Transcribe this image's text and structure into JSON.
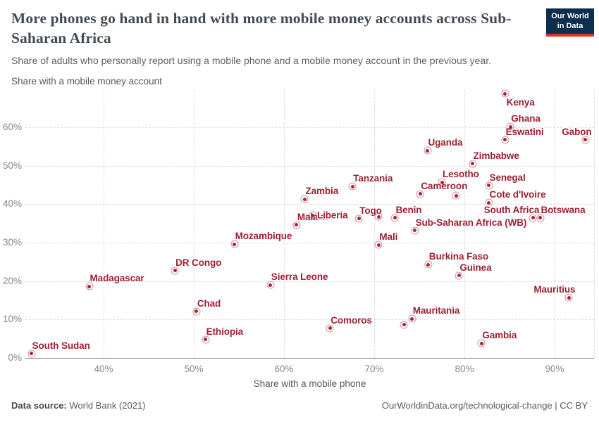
{
  "header": {
    "title": "More phones go hand in hand with more mobile money accounts across Sub-Saharan Africa",
    "subtitle": "Share of adults who personally report using a mobile phone and a mobile money account in the previous year.",
    "logo": {
      "line1": "Our World",
      "line2": "in Data",
      "bg_color": "#0d2e4c",
      "accent_color": "#dd352c"
    }
  },
  "chart_data": {
    "type": "scatter",
    "xlabel": "Share with a mobile phone",
    "ylabel": "Share with a mobile money account",
    "x_ticks": [
      40,
      50,
      60,
      70,
      80,
      90
    ],
    "y_ticks": [
      0,
      10,
      20,
      30,
      40,
      50,
      60
    ],
    "tick_suffix": "%",
    "xlim": [
      31.3,
      94.4
    ],
    "ylim": [
      0,
      69.7
    ],
    "grid": true,
    "legend": "none",
    "point_color": "#a22837",
    "label_color": "#9d2133",
    "points": [
      {
        "name": "South Sudan",
        "phone": 32.0,
        "money": 1.1,
        "label": "above-right"
      },
      {
        "name": "Madagascar",
        "phone": 38.4,
        "money": 18.6,
        "label": "above-right"
      },
      {
        "name": "DR Congo",
        "phone": 47.9,
        "money": 22.7,
        "label": "above-right"
      },
      {
        "name": "Chad",
        "phone": 50.3,
        "money": 12.1,
        "label": "above-right"
      },
      {
        "name": "Ethiopia",
        "phone": 51.3,
        "money": 4.8,
        "label": "above-right"
      },
      {
        "name": "Mozambique",
        "phone": 54.5,
        "money": 29.6,
        "label": "above-right"
      },
      {
        "name": "Sierra Leone",
        "phone": 58.5,
        "money": 19.0,
        "label": "above-right"
      },
      {
        "name": "Malawi",
        "phone": 61.4,
        "money": 34.6,
        "label": "above-right"
      },
      {
        "name": "Zambia",
        "phone": 62.3,
        "money": 41.3,
        "label": "above-right"
      },
      {
        "name": "Liberia",
        "phone": 63.2,
        "money": 37.1,
        "label": "right"
      },
      {
        "name": "Comoros",
        "phone": 65.1,
        "money": 7.7,
        "label": "above-right"
      },
      {
        "name": "Tanzania",
        "phone": 67.6,
        "money": 44.6,
        "label": "above-right"
      },
      {
        "name": "Togo",
        "phone": 68.3,
        "money": 36.2,
        "label": "above-right"
      },
      {
        "name": "",
        "phone": 70.5,
        "money": 36.7,
        "label": "none"
      },
      {
        "name": "Mali",
        "phone": 70.5,
        "money": 29.4,
        "label": "above-right"
      },
      {
        "name": "Benin",
        "phone": 72.3,
        "money": 36.4,
        "label": "above-right"
      },
      {
        "name": "",
        "phone": 73.3,
        "money": 8.6,
        "label": "none"
      },
      {
        "name": "Mauritania",
        "phone": 74.2,
        "money": 10.2,
        "label": "above-right"
      },
      {
        "name": "Sub-Saharan Africa (WB)",
        "phone": 74.5,
        "money": 33.1,
        "label": "above-right"
      },
      {
        "name": "Cameroon",
        "phone": 75.1,
        "money": 42.6,
        "label": "above-right"
      },
      {
        "name": "Uganda",
        "phone": 75.9,
        "money": 53.9,
        "label": "above-right"
      },
      {
        "name": "Burkina Faso",
        "phone": 76.0,
        "money": 24.3,
        "label": "above-right"
      },
      {
        "name": "Lesotho",
        "phone": 77.5,
        "money": 45.7,
        "label": "above-right"
      },
      {
        "name": "",
        "phone": 79.1,
        "money": 42.2,
        "label": "none"
      },
      {
        "name": "Guinea",
        "phone": 79.4,
        "money": 21.4,
        "label": "above-right"
      },
      {
        "name": "Zimbabwe",
        "phone": 80.9,
        "money": 50.5,
        "label": "above-right"
      },
      {
        "name": "Gambia",
        "phone": 81.9,
        "money": 3.8,
        "label": "above-right"
      },
      {
        "name": "Senegal",
        "phone": 82.7,
        "money": 44.8,
        "label": "above-right"
      },
      {
        "name": "Cote d'Ivoire",
        "phone": 82.7,
        "money": 40.4,
        "label": "above-right"
      },
      {
        "name": "Kenya",
        "phone": 84.5,
        "money": 68.7,
        "label": "below-right"
      },
      {
        "name": "Eswatini",
        "phone": 84.5,
        "money": 56.7,
        "label": "above-right"
      },
      {
        "name": "Ghana",
        "phone": 85.1,
        "money": 60.1,
        "label": "above-right"
      },
      {
        "name": "South Africa",
        "phone": 87.6,
        "money": 36.4,
        "label": "above-left"
      },
      {
        "name": "Botswana",
        "phone": 88.4,
        "money": 36.4,
        "label": "above-right"
      },
      {
        "name": "Mauritius",
        "phone": 91.6,
        "money": 15.7,
        "label": "above-left"
      },
      {
        "name": "Gabon",
        "phone": 93.4,
        "money": 56.7,
        "label": "above-left"
      }
    ]
  },
  "footer": {
    "source_label": "Data source:",
    "source_value": " World Bank (2021)",
    "credit": "OurWorldinData.org/technological-change | CC BY"
  }
}
